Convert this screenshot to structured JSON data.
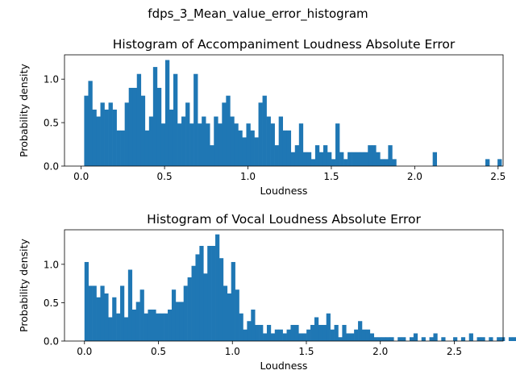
{
  "suptitle": "fdps_3_Mean_value_error_histogram",
  "chart_data": [
    {
      "type": "bar",
      "title": "Histogram of Accompaniment Loudness Absolute Error",
      "xlabel": "Loudness",
      "ylabel": "Probability density",
      "xlim": [
        -0.1,
        2.53
      ],
      "ylim": [
        0,
        1.28
      ],
      "xticks": [
        "0.0",
        "0.5",
        "1.0",
        "1.5",
        "2.0",
        "2.5"
      ],
      "xtick_values": [
        0,
        0.5,
        1.0,
        1.5,
        2.0,
        2.5
      ],
      "yticks": [
        "0.0",
        "0.5",
        "1.0"
      ],
      "ytick_values": [
        0,
        0.5,
        1.0
      ],
      "bin_start": 0.018,
      "bin_width": 0.0243,
      "color": "#1f77b4",
      "values": [
        0.81,
        0.98,
        0.65,
        0.57,
        0.73,
        0.65,
        0.73,
        0.65,
        0.41,
        0.41,
        0.73,
        0.9,
        0.9,
        1.06,
        0.81,
        0.41,
        0.57,
        1.14,
        0.9,
        0.49,
        1.22,
        0.65,
        1.06,
        0.49,
        0.57,
        0.73,
        0.49,
        1.06,
        0.49,
        0.57,
        0.49,
        0.24,
        0.57,
        0.49,
        0.73,
        0.81,
        0.57,
        0.49,
        0.41,
        0.33,
        0.49,
        0.41,
        0.33,
        0.73,
        0.81,
        0.57,
        0.49,
        0.24,
        0.57,
        0.41,
        0.41,
        0.16,
        0.24,
        0.49,
        0.16,
        0.16,
        0.08,
        0.24,
        0.16,
        0.24,
        0.16,
        0.08,
        0.49,
        0.16,
        0.08,
        0.16,
        0.16,
        0.16,
        0.16,
        0.16,
        0.24,
        0.24,
        0.16,
        0.08,
        0.08,
        0.24,
        0.08,
        0,
        0,
        0,
        0,
        0,
        0,
        0,
        0,
        0,
        0.16,
        0,
        0,
        0,
        0,
        0,
        0,
        0,
        0,
        0,
        0,
        0,
        0,
        0.08,
        0,
        0,
        0.08
      ],
      "nonzero_bins": [
        0,
        1,
        2,
        3,
        4,
        5,
        6,
        7,
        8,
        9,
        10,
        11,
        12,
        13,
        14,
        15,
        16,
        17,
        18,
        19,
        20,
        21,
        22,
        23,
        24,
        25,
        26,
        27,
        28,
        29,
        30,
        31,
        32,
        33,
        34,
        35,
        36,
        37,
        38,
        39,
        40,
        41,
        42,
        43,
        44,
        45,
        46,
        47,
        48,
        49,
        50,
        51,
        52,
        53,
        54,
        55,
        56,
        57,
        58,
        59,
        60,
        61,
        62,
        63,
        64,
        65,
        66,
        67,
        68,
        69,
        70,
        71,
        72,
        73,
        74,
        75,
        76,
        86,
        99,
        102
      ]
    },
    {
      "type": "bar",
      "title": "Histogram of Vocal Loudness Absolute Error",
      "xlabel": "Loudness",
      "ylabel": "Probability density",
      "xlim": [
        -0.135,
        2.83
      ],
      "ylim": [
        0,
        1.45
      ],
      "xticks": [
        "0.0",
        "0.5",
        "1.0",
        "1.5",
        "2.0",
        "2.5"
      ],
      "xtick_values": [
        0,
        0.5,
        1.0,
        1.5,
        2.0,
        2.5
      ],
      "yticks": [
        "0.0",
        "0.5",
        "1.0"
      ],
      "ytick_values": [
        0,
        0.5,
        1.0
      ],
      "bin_start": 0.0,
      "bin_width": 0.0268,
      "color": "#1f77b4",
      "values": [
        1.03,
        0.72,
        0.72,
        0.57,
        0.72,
        0.62,
        0.31,
        0.57,
        0.36,
        0.72,
        0.31,
        0.93,
        0.41,
        0.51,
        0.67,
        0.36,
        0.41,
        0.41,
        0.36,
        0.36,
        0.36,
        0.41,
        0.67,
        0.51,
        0.51,
        0.72,
        0.83,
        0.98,
        1.13,
        1.24,
        0.88,
        1.24,
        1.24,
        1.39,
        1.08,
        0.72,
        0.62,
        1.03,
        0.67,
        0.36,
        0.15,
        0.26,
        0.41,
        0.21,
        0.21,
        0.1,
        0.21,
        0.1,
        0.15,
        0.15,
        0.1,
        0.15,
        0.21,
        0.21,
        0.1,
        0.1,
        0.15,
        0.21,
        0.31,
        0.21,
        0.21,
        0.36,
        0.15,
        0.21,
        0.05,
        0.21,
        0.1,
        0.1,
        0.15,
        0.26,
        0.15,
        0.15,
        0.1,
        0.05,
        0.05,
        0.05,
        0.05,
        0.05,
        0.0,
        0.05,
        0.05,
        0.0,
        0.05,
        0.1,
        0.0,
        0.05,
        0.0,
        0.05,
        0.1,
        0.0,
        0.05,
        0.0,
        0.0,
        0.05,
        0.0,
        0.05,
        0.0,
        0.1,
        0.0,
        0.05,
        0.05,
        0.0,
        0.05,
        0.0,
        0.05,
        0.05,
        0.0,
        0.05,
        0.05
      ]
    }
  ]
}
